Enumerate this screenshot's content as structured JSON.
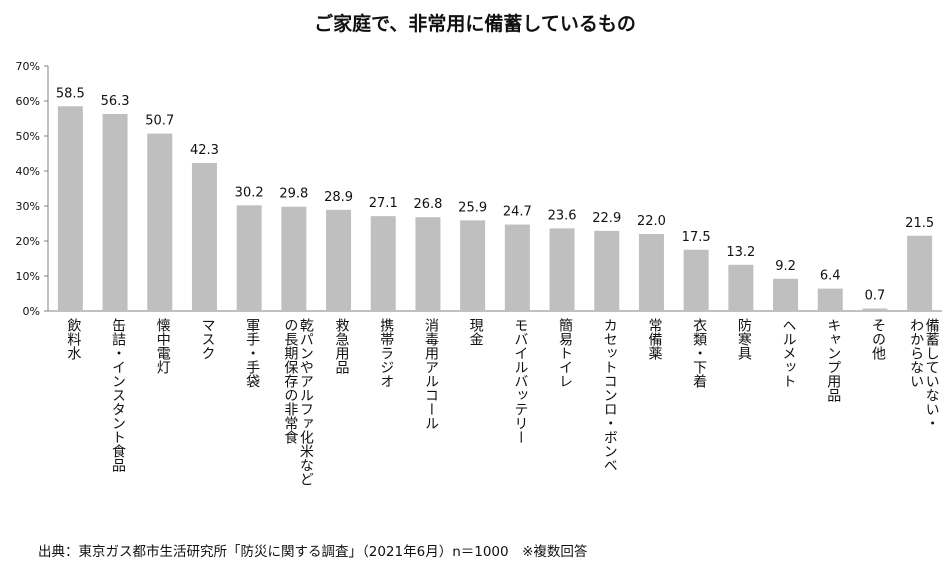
{
  "chart_data": {
    "type": "bar",
    "title": "ご家庭で、非常用に備蓄しているもの",
    "categories": [
      "飲料水",
      "缶詰・インスタント食品",
      "懐中電灯",
      "マスク",
      "軍手・手袋",
      "乾パンやアルファ化米などの長期保存の非常食",
      "救急用品",
      "携帯ラジオ",
      "消毒用アルコール",
      "現金",
      "モバイルバッテリー",
      "簡易トイレ",
      "カセットコンロ・ボンベ",
      "常備薬",
      "衣類・下着",
      "防寒具",
      "ヘルメット",
      "キャンプ用品",
      "その他",
      "備蓄していない・わからない"
    ],
    "category_lines": [
      [
        "飲料水"
      ],
      [
        "缶詰・インスタント食品"
      ],
      [
        "懐中電灯"
      ],
      [
        "マスク"
      ],
      [
        "軍手・手袋"
      ],
      [
        "乾パンやアルファ化米など",
        "の長期保存の非常食"
      ],
      [
        "救急用品"
      ],
      [
        "携帯ラジオ"
      ],
      [
        "消毒用アルコール"
      ],
      [
        "現金"
      ],
      [
        "モバイルバッテリー"
      ],
      [
        "簡易トイレ"
      ],
      [
        "カセットコンロ・ボンベ"
      ],
      [
        "常備薬"
      ],
      [
        "衣類・下着"
      ],
      [
        "防寒具"
      ],
      [
        "ヘルメット"
      ],
      [
        "キャンプ用品"
      ],
      [
        "その他"
      ],
      [
        "備蓄していない・",
        "わからない"
      ]
    ],
    "values": [
      58.5,
      56.3,
      50.7,
      42.3,
      30.2,
      29.8,
      28.9,
      27.1,
      26.8,
      25.9,
      24.7,
      23.6,
      22.9,
      22.0,
      17.5,
      13.2,
      9.2,
      6.4,
      0.7,
      21.5
    ],
    "value_labels": [
      "58.5",
      "56.3",
      "50.7",
      "42.3",
      "30.2",
      "29.8",
      "28.9",
      "27.1",
      "26.8",
      "25.9",
      "24.7",
      "23.6",
      "22.9",
      "22.0",
      "17.5",
      "13.2",
      "9.2",
      "6.4",
      "0.7",
      "21.5"
    ],
    "yticks": [
      "0%",
      "10%",
      "20%",
      "30%",
      "40%",
      "50%",
      "60%",
      "70%"
    ],
    "ylim": [
      0,
      70
    ],
    "grid": false,
    "bar_color": "#bfbfbf",
    "axis_color": "#808080"
  },
  "source_note": "出典：東京ガス都市生活研究所「防災に関する調査」（2021年6月）n＝1000　※複数回答"
}
